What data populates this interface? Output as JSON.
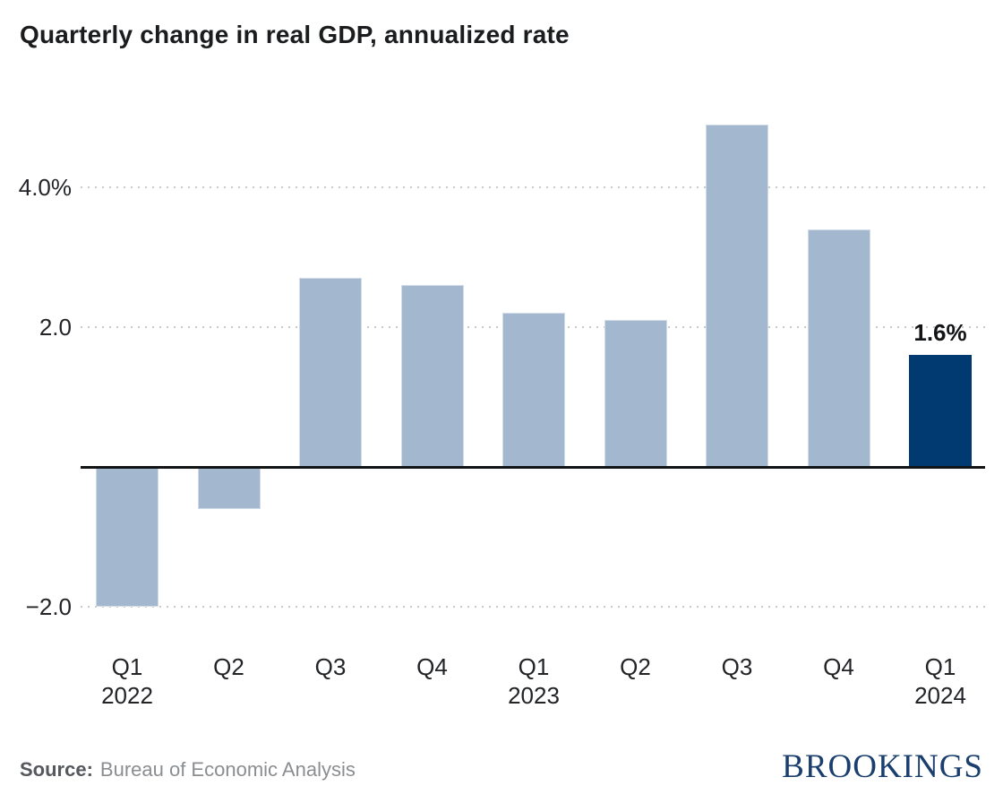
{
  "title": "Quarterly change in real GDP, annualized rate",
  "chart_data": {
    "type": "bar",
    "title": "Quarterly change in real GDP, annualized rate",
    "categories": [
      "Q1 2022",
      "Q2 2022",
      "Q3 2022",
      "Q4 2022",
      "Q1 2023",
      "Q2 2023",
      "Q3 2023",
      "Q4 2023",
      "Q1 2024"
    ],
    "values": [
      -2.0,
      -0.6,
      2.7,
      2.6,
      2.2,
      2.1,
      4.9,
      3.4,
      1.6
    ],
    "unit": "percent",
    "x_ticks": [
      {
        "quarter": "Q1",
        "year": "2022"
      },
      {
        "quarter": "Q2",
        "year": ""
      },
      {
        "quarter": "Q3",
        "year": ""
      },
      {
        "quarter": "Q4",
        "year": ""
      },
      {
        "quarter": "Q1",
        "year": "2023"
      },
      {
        "quarter": "Q2",
        "year": ""
      },
      {
        "quarter": "Q3",
        "year": ""
      },
      {
        "quarter": "Q4",
        "year": ""
      },
      {
        "quarter": "Q1",
        "year": "2024"
      }
    ],
    "y_ticks": [
      {
        "value": 4.0,
        "label": "4.0%"
      },
      {
        "value": 2.0,
        "label": "2.0"
      },
      {
        "value": -2.0,
        "label": "−2.0"
      }
    ],
    "ylim": [
      -2.7,
      5.3
    ],
    "grid": "horizontal-dotted",
    "legend": "none",
    "highlight_index": 8,
    "data_label": {
      "index": 8,
      "text": "1.6%"
    },
    "colors": {
      "bar": "#a3b8ce",
      "bar_highlight": "#003a70",
      "zero_line": "#121416",
      "grid": "#c9cacb"
    }
  },
  "footer": {
    "source_label": "Source:",
    "source_text": "Bureau of Economic Analysis",
    "brand": "BROOKINGS"
  }
}
